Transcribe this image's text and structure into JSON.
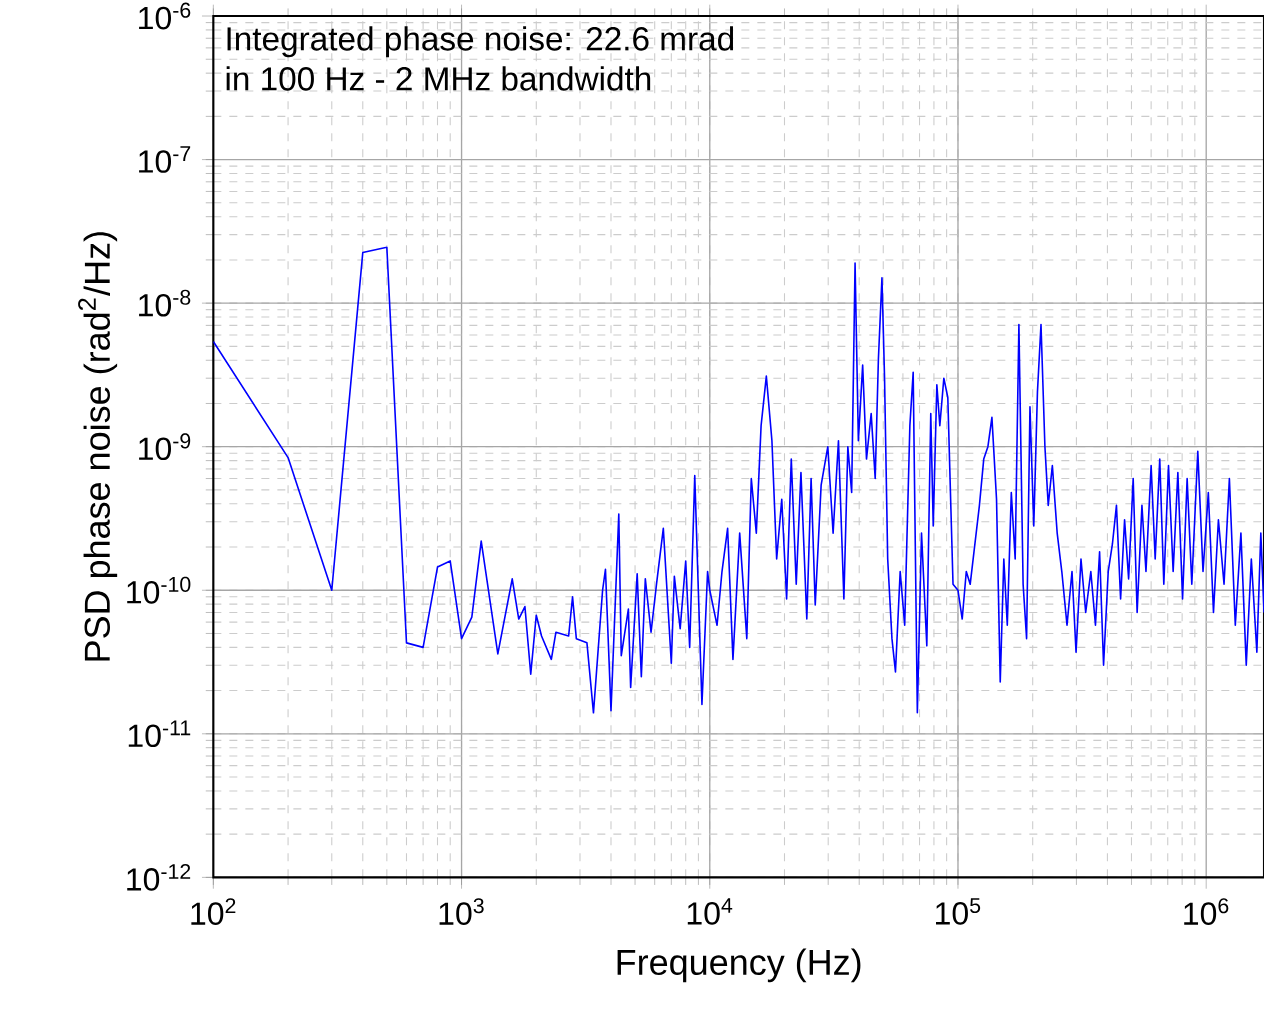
{
  "chart_data": {
    "type": "line",
    "xlabel": "Frequency (Hz)",
    "ylabel": "PSD phase noise (rad$^{2}$/Hz)",
    "annotations": [
      "Integrated phase noise: 22.6 mrad",
      "in 100 Hz - 2 MHz bandwidth"
    ],
    "log": "xy",
    "grid": true,
    "marker": "none",
    "line_style": "solid",
    "xlim": [
      100,
      1710000
    ],
    "ylim": [
      1e-12,
      1e-06
    ],
    "xticks": [
      {
        "value": 100,
        "label": "10$^{2}$"
      },
      {
        "value": 1000,
        "label": "10$^{3}$"
      },
      {
        "value": 10000,
        "label": "10$^{4}$"
      },
      {
        "value": 100000,
        "label": "10$^{5}$"
      },
      {
        "value": 1000000,
        "label": "10$^{6}$"
      }
    ],
    "yticks": [
      {
        "value": 1e-12,
        "label": "10$^{-12}$"
      },
      {
        "value": 1e-11,
        "label": "10$^{-11}$"
      },
      {
        "value": 1e-10,
        "label": "10$^{-10}$"
      },
      {
        "value": 1e-09,
        "label": "10$^{-9}$"
      },
      {
        "value": 1e-08,
        "label": "10$^{-8}$"
      },
      {
        "value": 1e-07,
        "label": "10$^{-7}$"
      },
      {
        "value": 1e-06,
        "label": "10$^{-6}$"
      }
    ],
    "series": [
      {
        "color": "#0000ff",
        "x": [
          100,
          200,
          300,
          400,
          500,
          600,
          700,
          800,
          900,
          1000,
          1100,
          1200,
          1400,
          1600,
          1700,
          1800,
          1900,
          2000,
          2100,
          2300,
          2400,
          2700,
          2800,
          2900,
          3200,
          3400,
          3700,
          3800,
          4000,
          4300,
          4400,
          4700,
          4800,
          5100,
          5300,
          5500,
          5800,
          6100,
          6500,
          7000,
          7200,
          7600,
          8000,
          8300,
          8700,
          9000,
          9300,
          9800,
          10000,
          10700,
          11200,
          11800,
          12400,
          13200,
          14100,
          14700,
          15400,
          16100,
          16900,
          17800,
          18600,
          19500,
          20400,
          21300,
          22300,
          23300,
          24600,
          25600,
          26600,
          28100,
          29900,
          31400,
          33000,
          34700,
          36000,
          37300,
          38500,
          39700,
          41300,
          42800,
          44700,
          46400,
          47800,
          49400,
          50600,
          52100,
          54200,
          56000,
          58500,
          61000,
          64000,
          66000,
          68600,
          71300,
          74900,
          77700,
          79500,
          82200,
          84500,
          87700,
          91000,
          95500,
          100000,
          104000,
          108000,
          112000,
          116000,
          122000,
          127000,
          132000,
          137000,
          143000,
          148000,
          153000,
          158000,
          164000,
          170000,
          176000,
          183000,
          189000,
          195000,
          202000,
          209000,
          216000,
          224000,
          231000,
          240000,
          251000,
          262000,
          275000,
          288000,
          299000,
          313000,
          327000,
          343000,
          358000,
          372000,
          386000,
          403000,
          419000,
          435000,
          452000,
          469000,
          487000,
          508000,
          527000,
          551000,
          572000,
          600000,
          623000,
          650000,
          675000,
          705000,
          736000,
          769000,
          803000,
          838000,
          875000,
          925000,
          971000,
          1020000,
          1070000,
          1120000,
          1180000,
          1240000,
          1310000,
          1380000,
          1450000,
          1520000,
          1600000,
          1660000,
          1710000
        ],
        "values": [
          5.4e-09,
          8.4e-10,
          1e-10,
          2.25e-08,
          2.45e-08,
          4.3e-11,
          4e-11,
          1.45e-10,
          1.6e-10,
          4.6e-11,
          6.5e-11,
          2.2e-10,
          3.6e-11,
          1.2e-10,
          6.3e-11,
          7.7e-11,
          2.6e-11,
          6.7e-11,
          4.8e-11,
          3.3e-11,
          5.1e-11,
          4.8e-11,
          9e-11,
          4.6e-11,
          4.3e-11,
          1.4e-11,
          1e-10,
          1.4e-10,
          1.45e-11,
          3.4e-10,
          3.5e-11,
          7.4e-11,
          2.1e-11,
          1.3e-10,
          2.5e-11,
          1.2e-10,
          5.1e-11,
          1.1e-10,
          2.7e-10,
          3.1e-11,
          1.25e-10,
          5.4e-11,
          1.6e-10,
          4e-11,
          6.3e-10,
          9.6e-11,
          1.6e-11,
          1.35e-10,
          1e-10,
          5.7e-11,
          1.35e-10,
          2.7e-10,
          3.3e-11,
          2.5e-10,
          4.6e-11,
          6e-10,
          2.5e-10,
          1.4e-09,
          3.1e-09,
          1.1e-09,
          1.65e-10,
          4.3e-10,
          8.7e-11,
          8.2e-10,
          1.1e-10,
          6.6e-10,
          6.3e-11,
          6e-10,
          7.9e-11,
          5.4e-10,
          1e-09,
          2.5e-10,
          1.1e-09,
          8.7e-11,
          1e-09,
          4.8e-10,
          1.9e-08,
          1.1e-09,
          3.7e-09,
          8.2e-10,
          1.7e-09,
          6e-10,
          4.1e-09,
          1.5e-08,
          3e-09,
          1.65e-10,
          4.6e-11,
          2.7e-11,
          1.35e-10,
          5.7e-11,
          1.4e-09,
          3.3e-09,
          1.4e-11,
          2.5e-10,
          4.1e-11,
          1.7e-09,
          2.8e-10,
          2.7e-09,
          1.4e-09,
          3e-09,
          2.2e-09,
          1.1e-10,
          1e-10,
          6.3e-11,
          1.35e-10,
          1.1e-10,
          1.85e-10,
          3.9e-10,
          8.2e-10,
          1e-09,
          1.6e-09,
          4.3e-10,
          2.3e-11,
          1.65e-10,
          5.7e-11,
          4.8e-10,
          1.65e-10,
          7.1e-09,
          1.1e-10,
          4.6e-11,
          1.9e-09,
          2.8e-10,
          2.4e-09,
          7.1e-09,
          1e-09,
          3.9e-10,
          7.4e-10,
          2.5e-10,
          1.35e-10,
          5.7e-11,
          1.35e-10,
          3.7e-11,
          1.65e-10,
          7e-11,
          1.35e-10,
          5.7e-11,
          1.85e-10,
          3e-11,
          1.35e-10,
          2.1e-10,
          3.9e-10,
          8.7e-11,
          3.1e-10,
          1.2e-10,
          6e-10,
          7e-11,
          3.9e-10,
          1.35e-10,
          7.4e-10,
          1.65e-10,
          8.2e-10,
          1.1e-10,
          7.4e-10,
          1.35e-10,
          6.6e-10,
          8.7e-11,
          6e-10,
          1.1e-10,
          9.3e-10,
          1.35e-10,
          4.8e-10,
          7e-11,
          3.1e-10,
          1.1e-10,
          6e-10,
          5.7e-11,
          2.5e-10,
          3e-11,
          1.65e-10,
          3.7e-11,
          2.5e-10,
          7e-11
        ]
      }
    ]
  }
}
